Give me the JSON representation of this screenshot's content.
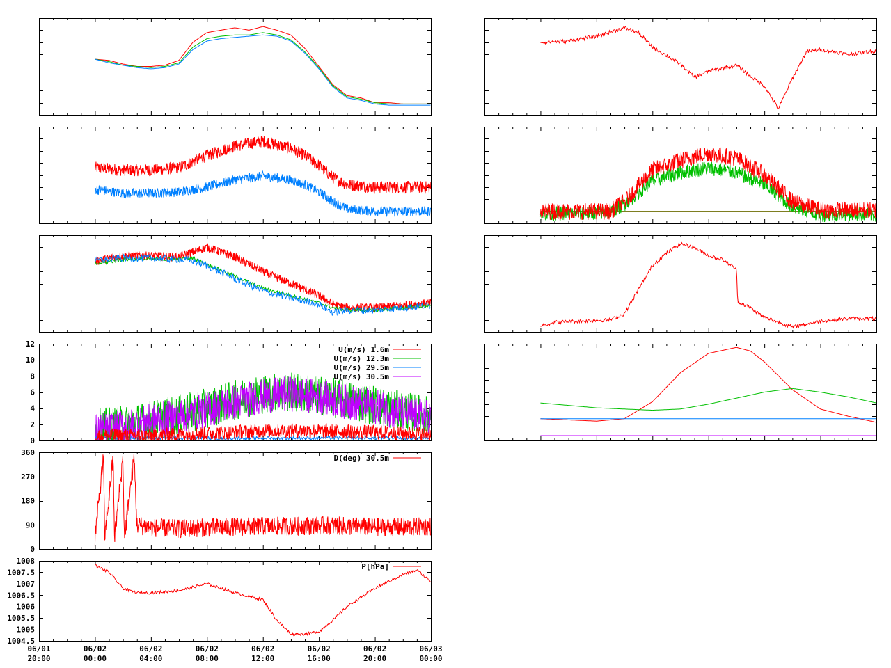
{
  "colors": {
    "red": "#ff0000",
    "green": "#00c000",
    "blue": "#0080ff",
    "purple": "#c000ff",
    "olive": "#6b6b00"
  },
  "time_axis": {
    "range_hours": [
      0,
      28
    ],
    "ticks": [
      {
        "h": 0,
        "date": "06/01",
        "time": "20:00"
      },
      {
        "h": 4,
        "date": "06/02",
        "time": "00:00"
      },
      {
        "h": 8,
        "date": "06/02",
        "time": "04:00"
      },
      {
        "h": 12,
        "date": "06/02",
        "time": "08:00"
      },
      {
        "h": 16,
        "date": "06/02",
        "time": "12:00"
      },
      {
        "h": 20,
        "date": "06/02",
        "time": "16:00"
      },
      {
        "h": 24,
        "date": "06/02",
        "time": "20:00"
      },
      {
        "h": 28,
        "date": "06/03",
        "time": "00:00"
      }
    ]
  },
  "chart_data": [
    {
      "id": "left-1",
      "type": "line",
      "ylim": [
        0,
        8
      ],
      "series": [
        {
          "color": "red",
          "x": [
            4,
            5,
            6,
            7,
            8,
            9,
            10,
            11,
            12,
            13,
            14,
            15,
            16,
            17,
            18,
            19,
            20,
            21,
            22,
            23,
            24,
            25,
            26,
            27,
            28
          ],
          "y": [
            4.6,
            4.5,
            4.2,
            4.0,
            4.0,
            4.1,
            4.5,
            6.0,
            6.8,
            7.0,
            7.2,
            7.0,
            7.3,
            7.0,
            6.6,
            5.5,
            4.0,
            2.5,
            1.6,
            1.4,
            1.0,
            1.0,
            0.9,
            0.9,
            0.9
          ]
        },
        {
          "color": "green",
          "x": [
            4,
            5,
            6,
            7,
            8,
            9,
            10,
            11,
            12,
            13,
            14,
            15,
            16,
            17,
            18,
            19,
            20,
            21,
            22,
            23,
            24,
            25,
            26,
            27,
            28
          ],
          "y": [
            4.6,
            4.4,
            4.1,
            4.0,
            3.9,
            4.0,
            4.3,
            5.6,
            6.3,
            6.5,
            6.6,
            6.6,
            6.8,
            6.6,
            6.2,
            5.2,
            3.9,
            2.4,
            1.5,
            1.3,
            1.0,
            0.9,
            0.9,
            0.9,
            0.9
          ]
        },
        {
          "color": "blue",
          "x": [
            4,
            5,
            6,
            7,
            8,
            9,
            10,
            11,
            12,
            13,
            14,
            15,
            16,
            17,
            18,
            19,
            20,
            21,
            22,
            23,
            24,
            25,
            26,
            27,
            28
          ],
          "y": [
            4.6,
            4.3,
            4.1,
            3.9,
            3.8,
            3.9,
            4.2,
            5.4,
            6.1,
            6.3,
            6.4,
            6.5,
            6.6,
            6.5,
            6.1,
            5.1,
            3.8,
            2.3,
            1.4,
            1.2,
            0.9,
            0.8,
            0.8,
            0.8,
            0.8
          ]
        }
      ]
    },
    {
      "id": "left-2",
      "type": "line",
      "ylim": [
        0,
        8
      ],
      "series": [
        {
          "color": "red",
          "noise": 0.5,
          "x": [
            4,
            6,
            8,
            10,
            12,
            14,
            16,
            18,
            19,
            20,
            21,
            22,
            24,
            26,
            28
          ],
          "y": [
            4.6,
            4.4,
            4.4,
            4.6,
            5.6,
            6.4,
            6.8,
            6.2,
            5.6,
            4.8,
            3.8,
            3.2,
            3.0,
            3.0,
            3.0
          ]
        },
        {
          "color": "blue",
          "noise": 0.4,
          "x": [
            4,
            6,
            8,
            10,
            12,
            14,
            16,
            18,
            19,
            20,
            21,
            22,
            24,
            26,
            28
          ],
          "y": [
            2.8,
            2.5,
            2.5,
            2.6,
            3.0,
            3.6,
            3.9,
            3.6,
            3.2,
            2.6,
            1.8,
            1.2,
            1.0,
            1.0,
            1.0
          ]
        }
      ]
    },
    {
      "id": "left-3",
      "type": "line",
      "ylim": [
        0,
        8
      ],
      "series": [
        {
          "color": "red",
          "noise": 0.35,
          "x": [
            4,
            5,
            6,
            8,
            10,
            11,
            12,
            14,
            16,
            18,
            20,
            21,
            22,
            24,
            26,
            28
          ],
          "y": [
            5.8,
            6.1,
            6.3,
            6.3,
            6.2,
            6.6,
            7.0,
            6.2,
            5.0,
            4.0,
            3.0,
            2.3,
            2.0,
            2.0,
            2.2,
            2.4
          ]
        },
        {
          "color": "green",
          "noise": 0.15,
          "x": [
            4,
            5,
            6,
            8,
            10,
            11,
            12,
            14,
            16,
            18,
            20,
            21,
            22,
            24,
            26,
            28
          ],
          "y": [
            5.6,
            5.8,
            6.0,
            6.0,
            6.0,
            6.1,
            5.6,
            4.6,
            3.6,
            3.0,
            2.4,
            2.0,
            1.8,
            1.8,
            2.0,
            2.2
          ]
        },
        {
          "color": "blue",
          "noise": 0.3,
          "x": [
            4,
            5,
            6,
            8,
            10,
            11,
            12,
            14,
            16,
            18,
            20,
            21,
            22,
            24,
            26,
            28
          ],
          "y": [
            5.9,
            6.0,
            6.1,
            6.1,
            6.0,
            5.9,
            5.5,
            4.4,
            3.4,
            2.8,
            2.3,
            1.6,
            1.8,
            1.8,
            2.0,
            2.2
          ]
        }
      ]
    },
    {
      "id": "left-4",
      "type": "line",
      "ylim": [
        0,
        12
      ],
      "yticks": [
        0,
        2,
        4,
        6,
        8,
        10,
        12
      ],
      "legend": [
        "U(m/s)  1.6m",
        "U(m/s) 12.3m",
        "U(m/s) 29.5m",
        "U(m/s) 30.5m"
      ],
      "series": [
        {
          "color": "green",
          "name": "U(m/s) 12.3m",
          "noise": 2.5,
          "x": [
            4,
            6,
            8,
            10,
            12,
            14,
            16,
            18,
            20,
            22,
            24,
            26,
            28
          ],
          "y": [
            1.5,
            1.8,
            2.5,
            3.2,
            4.0,
            5.0,
            5.8,
            6.0,
            5.6,
            5.0,
            4.4,
            3.6,
            3.0
          ]
        },
        {
          "color": "purple",
          "name": "U(m/s) 30.5m",
          "noise": 2.2,
          "x": [
            4,
            6,
            8,
            10,
            12,
            14,
            16,
            18,
            20,
            22,
            24,
            26,
            28
          ],
          "y": [
            1.2,
            1.6,
            2.4,
            3.0,
            3.8,
            4.8,
            5.5,
            5.8,
            5.4,
            4.8,
            4.2,
            3.4,
            2.8
          ]
        },
        {
          "color": "blue",
          "name": "U(m/s) 29.5m",
          "noise": 0.2,
          "x": [
            4,
            28
          ],
          "y": [
            0.3,
            0.3
          ]
        },
        {
          "color": "red",
          "name": "U(m/s)  1.6m",
          "noise": 0.9,
          "x": [
            4,
            8,
            12,
            16,
            20,
            24,
            28
          ],
          "y": [
            0.6,
            0.6,
            0.9,
            1.2,
            1.2,
            1.0,
            0.8
          ]
        }
      ]
    },
    {
      "id": "left-5",
      "type": "line",
      "ylim": [
        0,
        360
      ],
      "yticks": [
        0,
        90,
        180,
        270,
        360
      ],
      "legend": [
        "D(deg)  30.5m"
      ],
      "series": [
        {
          "color": "red",
          "name": "D(deg)  30.5m",
          "noise": 35,
          "x": [
            4,
            4.6,
            4.7,
            5.3,
            5.4,
            6.0,
            6.1,
            6.8,
            7.0,
            8,
            10,
            12,
            14,
            16,
            18,
            20,
            22,
            24,
            26,
            28
          ],
          "y": [
            40,
            340,
            40,
            340,
            40,
            340,
            40,
            340,
            90,
            80,
            75,
            80,
            82,
            85,
            85,
            88,
            85,
            82,
            80,
            85
          ]
        }
      ]
    },
    {
      "id": "left-6",
      "type": "line",
      "ylim": [
        1004.5,
        1008
      ],
      "yticks": [
        1004.5,
        1005,
        1005.5,
        1006,
        1006.5,
        1007,
        1007.5,
        1008
      ],
      "legend": [
        "P[hPa]"
      ],
      "series": [
        {
          "color": "red",
          "name": "P[hPa]",
          "noise": 0.06,
          "x": [
            4,
            5,
            6,
            7,
            8,
            10,
            12,
            14,
            16,
            17,
            18,
            19,
            20,
            21,
            22,
            24,
            26,
            27,
            28
          ],
          "y": [
            1007.8,
            1007.5,
            1006.8,
            1006.6,
            1006.6,
            1006.7,
            1007.0,
            1006.6,
            1006.3,
            1005.4,
            1004.8,
            1004.8,
            1004.9,
            1005.4,
            1006.0,
            1006.8,
            1007.4,
            1007.6,
            1007.1
          ]
        }
      ]
    },
    {
      "id": "right-1",
      "type": "line",
      "ylim": [
        0,
        8
      ],
      "series": [
        {
          "color": "red",
          "noise": 0.15,
          "x": [
            4,
            6,
            8,
            10,
            11,
            12,
            14,
            15,
            16,
            18,
            19,
            20,
            21,
            22,
            23,
            24,
            26,
            28
          ],
          "y": [
            6.0,
            6.1,
            6.5,
            7.2,
            6.8,
            5.6,
            4.2,
            3.1,
            3.6,
            4.1,
            3.2,
            2.4,
            0.5,
            3.0,
            5.2,
            5.4,
            5.0,
            5.3
          ]
        }
      ]
    },
    {
      "id": "right-2",
      "type": "line",
      "ylim": [
        0,
        8
      ],
      "series": [
        {
          "color": "olive",
          "x": [
            4,
            9,
            28
          ],
          "y": [
            1.0,
            1.0,
            1.0
          ]
        },
        {
          "color": "green",
          "noise": 0.6,
          "x": [
            4,
            9,
            10,
            12,
            14,
            16,
            18,
            20,
            22,
            24,
            26,
            28
          ],
          "y": [
            0.8,
            0.9,
            1.6,
            3.5,
            4.2,
            4.6,
            4.2,
            3.2,
            1.4,
            0.7,
            0.8,
            0.7
          ]
        },
        {
          "color": "red",
          "noise": 0.7,
          "x": [
            4,
            9,
            10,
            12,
            14,
            16,
            18,
            20,
            22,
            24,
            26,
            28
          ],
          "y": [
            1.0,
            1.0,
            1.8,
            4.4,
            5.2,
            5.8,
            5.4,
            4.0,
            1.8,
            1.1,
            1.1,
            1.1
          ]
        }
      ]
    },
    {
      "id": "right-3",
      "type": "line",
      "ylim": [
        0,
        8
      ],
      "series": [
        {
          "color": "red",
          "noise": 0.15,
          "x": [
            4,
            5,
            9,
            10,
            11,
            12,
            13,
            14,
            15,
            16,
            17,
            18,
            18.1,
            19,
            20,
            22,
            24,
            26,
            28
          ],
          "y": [
            0.5,
            0.8,
            1.0,
            1.5,
            3.5,
            5.5,
            6.5,
            7.3,
            7.0,
            6.3,
            6.0,
            5.2,
            2.5,
            2.0,
            1.2,
            0.4,
            0.9,
            1.1,
            1.1
          ]
        }
      ]
    },
    {
      "id": "right-4",
      "type": "line",
      "ylim": [
        0,
        8
      ],
      "series": [
        {
          "color": "red",
          "x": [
            4,
            6,
            8,
            10,
            12,
            14,
            16,
            18,
            19,
            20,
            22,
            24,
            26,
            28
          ],
          "y": [
            1.8,
            1.7,
            1.6,
            1.8,
            3.2,
            5.6,
            7.2,
            7.7,
            7.4,
            6.5,
            4.2,
            2.6,
            2.0,
            1.5
          ]
        },
        {
          "color": "green",
          "x": [
            4,
            6,
            8,
            10,
            12,
            14,
            16,
            18,
            20,
            22,
            24,
            26,
            28
          ],
          "y": [
            3.1,
            2.9,
            2.7,
            2.6,
            2.5,
            2.6,
            3.0,
            3.5,
            4.0,
            4.3,
            4.0,
            3.6,
            3.1
          ]
        },
        {
          "color": "blue",
          "x": [
            4,
            28
          ],
          "y": [
            1.8,
            1.8
          ]
        },
        {
          "color": "purple",
          "x": [
            4,
            28
          ],
          "y": [
            0.4,
            0.4
          ]
        }
      ]
    }
  ]
}
